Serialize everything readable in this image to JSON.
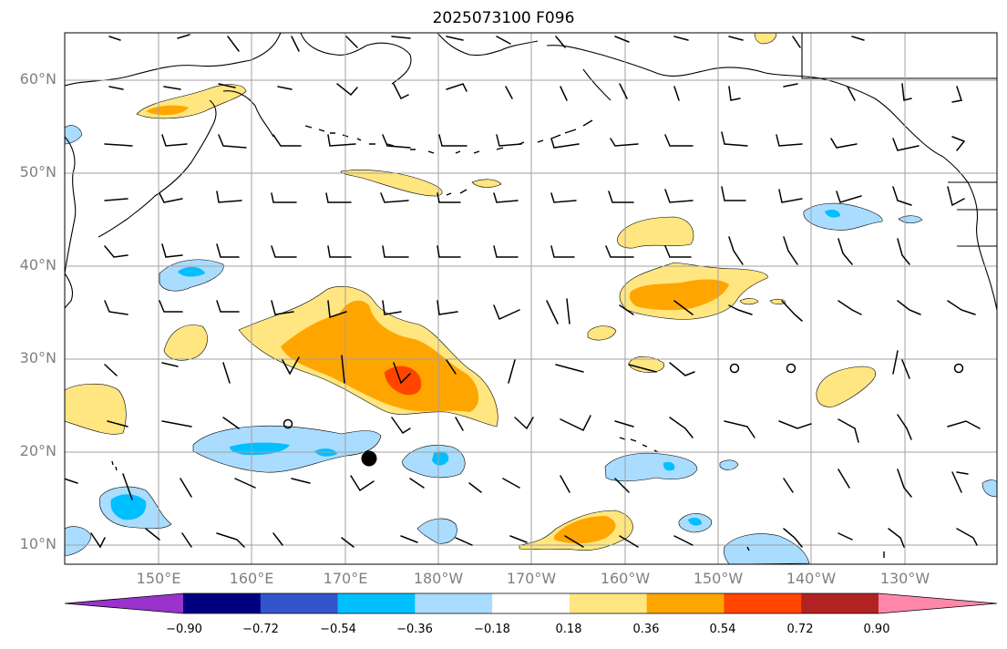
{
  "title": "2025073100 F096",
  "lat_labels": [
    "60°N",
    "50°N",
    "40°N",
    "30°N",
    "20°N",
    "10°N"
  ],
  "lon_labels": [
    "150°E",
    "160°E",
    "170°E",
    "180°W",
    "170°W",
    "160°W",
    "150°W",
    "140°W",
    "130°W"
  ],
  "colorbar": {
    "tick_labels": [
      "−0.90",
      "−0.72",
      "−0.54",
      "−0.36",
      "−0.18",
      "0.18",
      "0.36",
      "0.54",
      "0.72",
      "0.90"
    ],
    "colors": [
      "#9933cc",
      "#000080",
      "#3355cc",
      "#00bfff",
      "#aadcff",
      "#ffffff",
      "#ffe680",
      "#ffa500",
      "#ff4500",
      "#b22222",
      "#ff88aa"
    ]
  },
  "fill_colors": {
    "light_yellow": "#ffe680",
    "orange": "#ffa500",
    "red_orange": "#ff4500",
    "light_blue": "#aadcff",
    "deep_sky_blue": "#00bfff"
  },
  "markers": {
    "storm_dot_color": "#000000"
  }
}
